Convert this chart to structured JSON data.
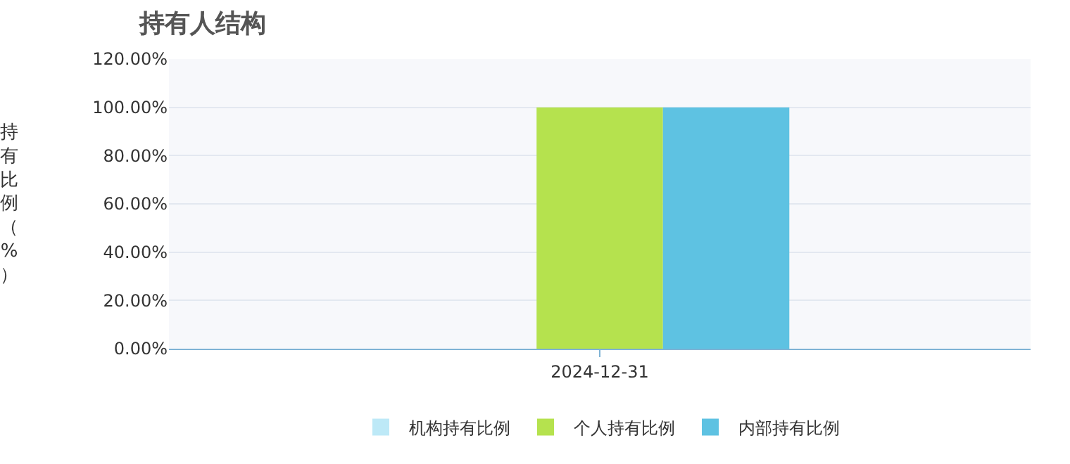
{
  "chart_data": {
    "type": "bar",
    "title": "持有人结构",
    "ylabel": "持有比例（%）",
    "categories": [
      "2024-12-31"
    ],
    "series": [
      {
        "name": "机构持有比例",
        "color": "#bde9f7",
        "values": [
          0
        ]
      },
      {
        "name": "个人持有比例",
        "color": "#b5e24e",
        "values": [
          100
        ]
      },
      {
        "name": "内部持有比例",
        "color": "#5ec2e2",
        "values": [
          100
        ]
      }
    ],
    "ylim": [
      0,
      120
    ],
    "yticks": [
      {
        "value": 0,
        "label": "0.00%"
      },
      {
        "value": 20,
        "label": "20.00%"
      },
      {
        "value": 40,
        "label": "40.00%"
      },
      {
        "value": 60,
        "label": "60.00%"
      },
      {
        "value": 80,
        "label": "80.00%"
      },
      {
        "value": 100,
        "label": "100.00%"
      },
      {
        "value": 120,
        "label": "120.00%"
      }
    ],
    "grid": "y",
    "legend": "bottom"
  }
}
